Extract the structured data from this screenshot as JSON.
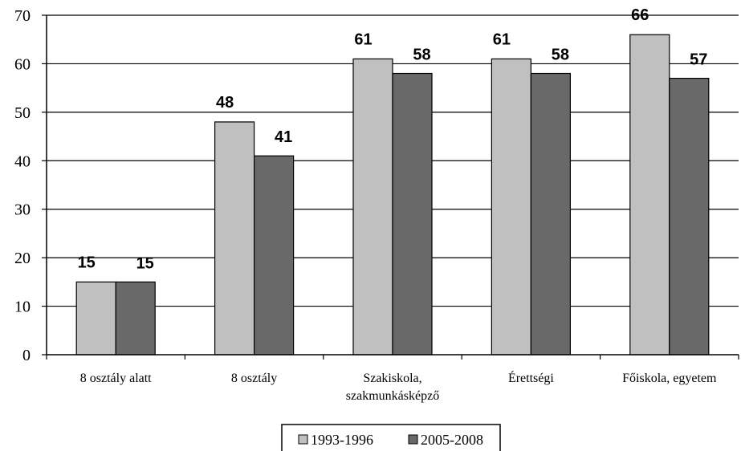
{
  "chart_data": {
    "type": "bar",
    "categories": [
      "8 osztály alatt",
      "8 osztály",
      "Szakiskola, szakmunkásképző",
      "Érettségi",
      "Főiskola, egyetem"
    ],
    "category_lines": [
      [
        "8 osztály alatt"
      ],
      [
        "8 osztály"
      ],
      [
        "Szakiskola,",
        "szakmunkásképző"
      ],
      [
        "Érettségi"
      ],
      [
        "Főiskola, egyetem"
      ]
    ],
    "series": [
      {
        "name": "1993-1996",
        "values": [
          15,
          48,
          61,
          61,
          66
        ],
        "color": "#c0c0c0"
      },
      {
        "name": "2005-2008",
        "values": [
          15,
          41,
          58,
          58,
          57
        ],
        "color": "#696969"
      }
    ],
    "ylim": [
      0,
      70
    ],
    "yticks": [
      0,
      10,
      20,
      30,
      40,
      50,
      60,
      70
    ],
    "grid": true,
    "legend_position": "bottom",
    "title": "",
    "xlabel": "",
    "ylabel": ""
  }
}
